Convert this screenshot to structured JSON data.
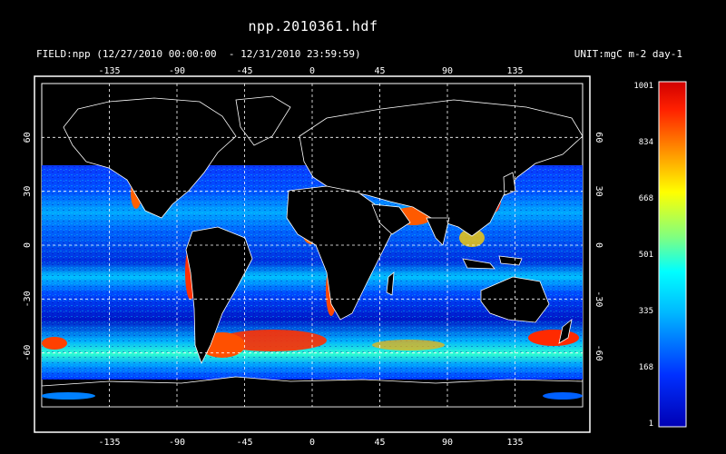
{
  "title": "npp.2010361.hdf",
  "field_label": "FIELD:npp (12/27/2010 00:00:00  - 12/31/2010 23:59:59)",
  "unit_label": "UNIT:mgC m-2 day-1",
  "map": {
    "projection": "equirectangular",
    "lon_range": [
      -180,
      180
    ],
    "lat_range": [
      -90,
      90
    ],
    "lon_ticks": [
      "-135",
      "-90",
      "-45",
      "0",
      "45",
      "90",
      "135"
    ],
    "lat_ticks": [
      "60",
      "30",
      "0",
      "-30",
      "-60"
    ],
    "grid": "dashed white",
    "background_color": "#000000",
    "coastline_color": "#ffffff"
  },
  "colorbar": {
    "labels": [
      "1001",
      "834",
      "668",
      "501",
      "335",
      "168",
      "1"
    ],
    "colors": [
      "#e00000",
      "#ff6a00",
      "#ffd400",
      "#c8ff37",
      "#00ffff",
      "#0090ff",
      "#0000c8"
    ]
  }
}
